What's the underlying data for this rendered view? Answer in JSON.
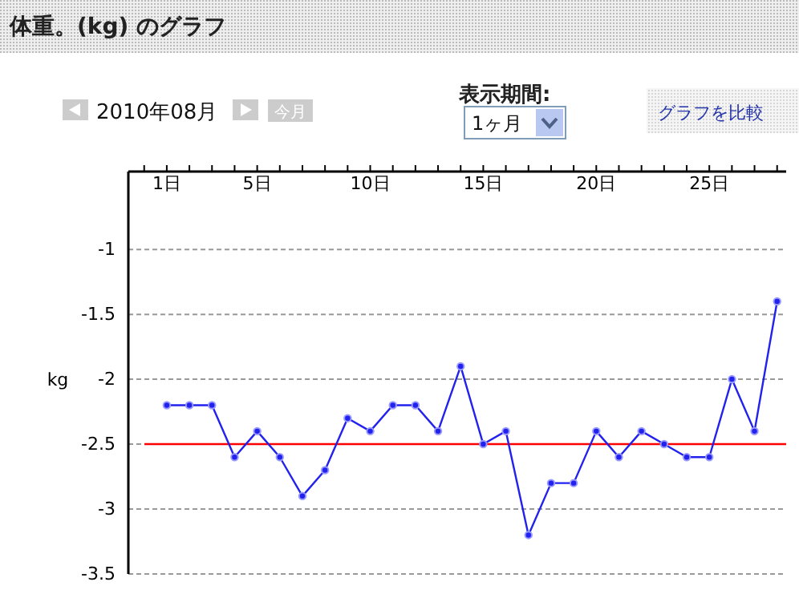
{
  "chart_data": {
    "type": "line",
    "title": "体重。(kg) のグラフ",
    "subtitle": "2010年08月",
    "ylabel": "kg",
    "annotations": [
      "今月",
      "表示期間:",
      "1ヶ月",
      "グラフを比較"
    ],
    "x": [
      1,
      2,
      3,
      4,
      5,
      6,
      7,
      8,
      9,
      10,
      11,
      12,
      13,
      14,
      15,
      16,
      17,
      18,
      19,
      20,
      21,
      22,
      23,
      24,
      25,
      26,
      27,
      28
    ],
    "series": [
      {
        "color": "#2222ee",
        "values": [
          -2.2,
          -2.2,
          -2.2,
          -2.6,
          -2.4,
          -2.6,
          -2.9,
          -2.7,
          -2.3,
          -2.4,
          -2.2,
          -2.2,
          -2.4,
          -1.9,
          -2.5,
          -2.4,
          -3.2,
          -2.8,
          -2.8,
          -2.4,
          -2.6,
          -2.4,
          -2.5,
          -2.6,
          -2.6,
          -2.0,
          -2.4,
          -1.4
        ]
      }
    ],
    "xlim": [
      -0.7,
      28.4
    ],
    "xticks": [
      {
        "value": 0,
        "label": null
      },
      {
        "value": 1,
        "label": "1日"
      },
      {
        "value": 2,
        "label": null
      },
      {
        "value": 3,
        "label": null
      },
      {
        "value": 4,
        "label": null
      },
      {
        "value": 5,
        "label": "5日"
      },
      {
        "value": 6,
        "label": null
      },
      {
        "value": 7,
        "label": null
      },
      {
        "value": 8,
        "label": null
      },
      {
        "value": 9,
        "label": null
      },
      {
        "value": 10,
        "label": "10日"
      },
      {
        "value": 11,
        "label": null
      },
      {
        "value": 12,
        "label": null
      },
      {
        "value": 13,
        "label": null
      },
      {
        "value": 14,
        "label": null
      },
      {
        "value": 15,
        "label": "15日"
      },
      {
        "value": 16,
        "label": null
      },
      {
        "value": 17,
        "label": null
      },
      {
        "value": 18,
        "label": null
      },
      {
        "value": 19,
        "label": null
      },
      {
        "value": 20,
        "label": "20日"
      },
      {
        "value": 21,
        "label": null
      },
      {
        "value": 22,
        "label": null
      },
      {
        "value": 23,
        "label": null
      },
      {
        "value": 24,
        "label": null
      },
      {
        "value": 25,
        "label": "25日"
      },
      {
        "value": 26,
        "label": null
      },
      {
        "value": 27,
        "label": null
      },
      {
        "value": 28,
        "label": null
      }
    ],
    "ylim": [
      -3.5,
      -0.4
    ],
    "yticks": [
      -1,
      -1.5,
      -2,
      -2.5,
      -3,
      -3.5
    ],
    "ref_lines": [
      {
        "axis": "y",
        "value": -2.5,
        "color": "#ff0000"
      }
    ],
    "grid": "y",
    "marker": "circle",
    "line_style": "solid"
  }
}
